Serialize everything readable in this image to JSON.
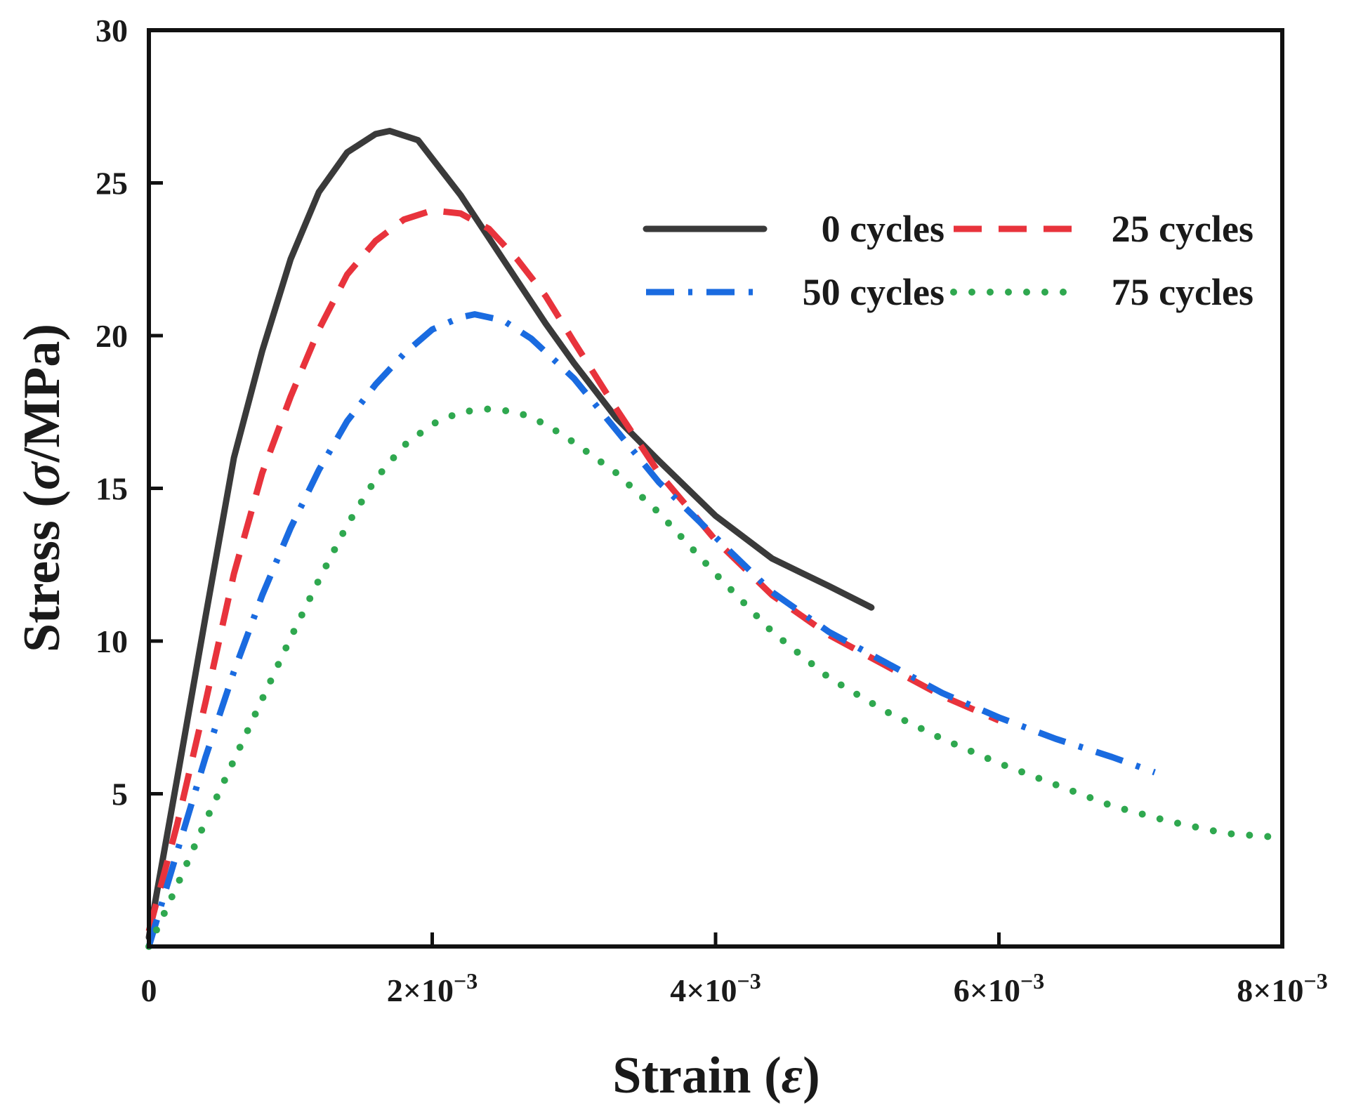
{
  "chart_data": {
    "type": "line",
    "title": "",
    "xlabel": {
      "prefix": "Strain (",
      "symbol": "ε",
      "suffix": ")"
    },
    "ylabel": {
      "prefix": "Stress (",
      "symbol": "σ",
      "suffix": "/MPa)"
    },
    "xlim": [
      0,
      0.008
    ],
    "ylim": [
      0,
      30
    ],
    "grid": false,
    "legend_position": "top-right",
    "x_ticks": [
      {
        "value": 0,
        "base": "0",
        "exp": ""
      },
      {
        "value": 0.002,
        "base": "2×10",
        "exp": "−3"
      },
      {
        "value": 0.004,
        "base": "4×10",
        "exp": "−3"
      },
      {
        "value": 0.006,
        "base": "6×10",
        "exp": "−3"
      },
      {
        "value": 0.008,
        "base": "8×10",
        "exp": "−3"
      }
    ],
    "y_ticks": [
      {
        "value": 5,
        "label": "5"
      },
      {
        "value": 10,
        "label": "10"
      },
      {
        "value": 15,
        "label": "15"
      },
      {
        "value": 20,
        "label": "20"
      },
      {
        "value": 25,
        "label": "25"
      },
      {
        "value": 30,
        "label": "30"
      }
    ],
    "series": [
      {
        "name": "0 cycles",
        "color": "#3a3a3a",
        "style": "solid",
        "x": [
          0,
          0.0002,
          0.0004,
          0.0006,
          0.0008,
          0.001,
          0.0012,
          0.0014,
          0.0016,
          0.0017,
          0.0019,
          0.002,
          0.0022,
          0.0024,
          0.0026,
          0.0028,
          0.003,
          0.0033,
          0.0036,
          0.004,
          0.0044,
          0.0048,
          0.0051
        ],
        "y": [
          0.3,
          5.5,
          10.8,
          16.0,
          19.5,
          22.5,
          24.7,
          26.0,
          26.6,
          26.7,
          26.4,
          25.8,
          24.6,
          23.2,
          21.8,
          20.4,
          19.1,
          17.3,
          15.9,
          14.1,
          12.7,
          11.8,
          11.1
        ]
      },
      {
        "name": "25 cycles",
        "color": "#e8333c",
        "style": "dash",
        "x": [
          0,
          0.0002,
          0.0004,
          0.0006,
          0.0008,
          0.001,
          0.0012,
          0.0014,
          0.0016,
          0.0018,
          0.002,
          0.0022,
          0.0024,
          0.0026,
          0.0028,
          0.003,
          0.0033,
          0.0036,
          0.004,
          0.0044,
          0.0048,
          0.0052,
          0.0056,
          0.006
        ],
        "y": [
          0.5,
          4.0,
          8.0,
          12.2,
          15.5,
          18.0,
          20.2,
          22.0,
          23.1,
          23.8,
          24.1,
          24.0,
          23.5,
          22.5,
          21.3,
          19.8,
          17.6,
          15.5,
          13.3,
          11.5,
          10.2,
          9.2,
          8.2,
          7.4
        ]
      },
      {
        "name": "50 cycles",
        "color": "#1a6be0",
        "style": "dashdot",
        "x": [
          0,
          0.0002,
          0.0004,
          0.0006,
          0.0008,
          0.001,
          0.0012,
          0.0014,
          0.0016,
          0.0018,
          0.002,
          0.0022,
          0.0023,
          0.0025,
          0.0027,
          0.003,
          0.0033,
          0.0036,
          0.004,
          0.0044,
          0.0048,
          0.0052,
          0.0056,
          0.006,
          0.0064,
          0.0068,
          0.0071
        ],
        "y": [
          0.0,
          3.1,
          6.2,
          9.0,
          11.5,
          13.7,
          15.6,
          17.2,
          18.4,
          19.4,
          20.2,
          20.6,
          20.7,
          20.5,
          19.9,
          18.6,
          16.9,
          15.2,
          13.4,
          11.6,
          10.3,
          9.3,
          8.3,
          7.5,
          6.8,
          6.2,
          5.7
        ]
      },
      {
        "name": "75 cycles",
        "color": "#2fa84f",
        "style": "dot",
        "x": [
          0,
          0.0002,
          0.0004,
          0.0006,
          0.0008,
          0.001,
          0.0012,
          0.0014,
          0.0016,
          0.0018,
          0.002,
          0.0022,
          0.0024,
          0.0026,
          0.0028,
          0.003,
          0.0033,
          0.0036,
          0.004,
          0.0044,
          0.0048,
          0.0052,
          0.0056,
          0.006,
          0.0064,
          0.0068,
          0.0072,
          0.0076,
          0.0079
        ],
        "y": [
          0.0,
          2.0,
          4.1,
          6.1,
          8.1,
          10.1,
          12.0,
          13.8,
          15.3,
          16.4,
          17.1,
          17.5,
          17.6,
          17.5,
          17.1,
          16.5,
          15.5,
          14.2,
          12.2,
          10.3,
          8.8,
          7.7,
          6.8,
          6.0,
          5.3,
          4.6,
          4.1,
          3.7,
          3.6
        ]
      }
    ]
  }
}
